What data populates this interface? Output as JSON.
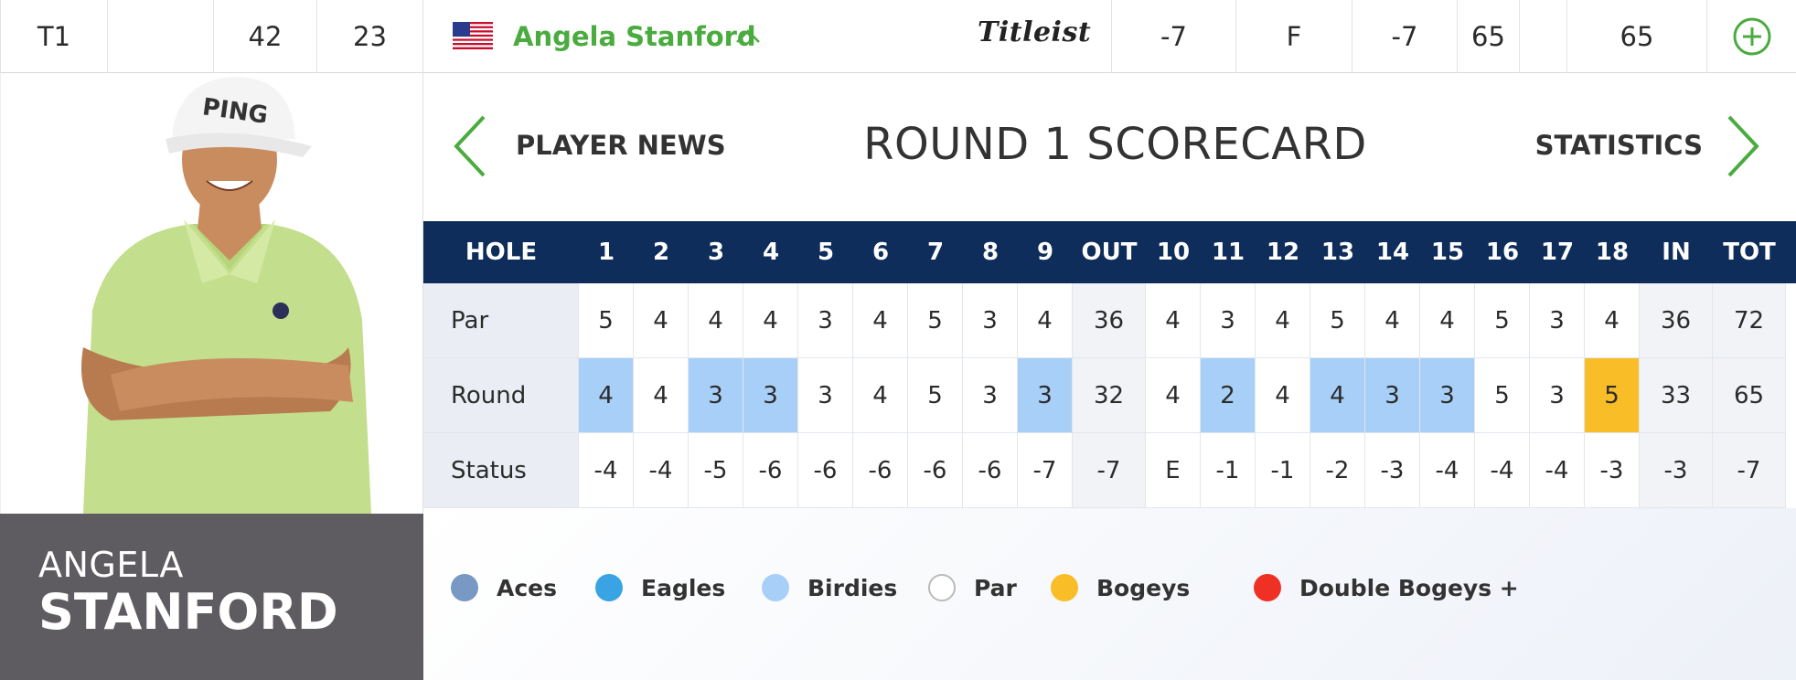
{
  "top_row": {
    "position": "T1",
    "col_blank": "",
    "col_a": "42",
    "col_b": "23",
    "player_name": "Angela Stanford",
    "sponsor": "Titleist",
    "today": "-7",
    "thru": "F",
    "total": "-7",
    "r1": "65",
    "r2": "",
    "tot_strokes": "65"
  },
  "player_card": {
    "first_name": "ANGELA",
    "last_name": "STANFORD"
  },
  "scorecard_header": {
    "prev_label": "PLAYER NEWS",
    "title": "ROUND 1 SCORECARD",
    "next_label": "STATISTICS"
  },
  "table": {
    "header": [
      "HOLE",
      "1",
      "2",
      "3",
      "4",
      "5",
      "6",
      "7",
      "8",
      "9",
      "OUT",
      "10",
      "11",
      "12",
      "13",
      "14",
      "15",
      "16",
      "17",
      "18",
      "IN",
      "TOT"
    ],
    "rows": [
      {
        "label": "Par",
        "values": [
          "5",
          "4",
          "4",
          "4",
          "3",
          "4",
          "5",
          "3",
          "4",
          "36",
          "4",
          "3",
          "4",
          "5",
          "4",
          "4",
          "5",
          "3",
          "4",
          "36",
          "72"
        ]
      },
      {
        "label": "Round",
        "values": [
          "4",
          "4",
          "3",
          "3",
          "3",
          "4",
          "5",
          "3",
          "3",
          "32",
          "4",
          "2",
          "4",
          "4",
          "3",
          "3",
          "5",
          "3",
          "5",
          "33",
          "65"
        ],
        "results": [
          "birdie",
          "par",
          "birdie",
          "birdie",
          "par",
          "par",
          "par",
          "par",
          "birdie",
          "total",
          "par",
          "birdie",
          "par",
          "birdie",
          "birdie",
          "birdie",
          "par",
          "par",
          "bogey",
          "total",
          "total"
        ]
      },
      {
        "label": "Status",
        "values": [
          "-4",
          "-4",
          "-5",
          "-6",
          "-6",
          "-6",
          "-6",
          "-6",
          "-7",
          "-7",
          "E",
          "-1",
          "-1",
          "-2",
          "-3",
          "-4",
          "-4",
          "-4",
          "-3",
          "-3",
          "-7"
        ]
      }
    ]
  },
  "legend": [
    {
      "label": "Aces",
      "color": "#7899c4"
    },
    {
      "label": "Eagles",
      "color": "#3aa3e3"
    },
    {
      "label": "Birdies",
      "color": "#a8cff7"
    },
    {
      "label": "Par",
      "color": "#ffffff"
    },
    {
      "label": "Bogeys",
      "color": "#f8bd27"
    },
    {
      "label": "Double Bogeys +",
      "color": "#ee3124"
    }
  ],
  "colors": {
    "accent_green": "#4aab3f",
    "header_navy": "#0e2d5a",
    "birdie": "#a8cff7",
    "bogey": "#f8bd27",
    "name_panel": "#5f5c61"
  },
  "icons": {
    "flag": "us-flag-icon",
    "caret": "chevron-up-icon",
    "add": "plus-circle-icon",
    "prev": "chevron-left-icon",
    "next": "chevron-right-icon"
  }
}
